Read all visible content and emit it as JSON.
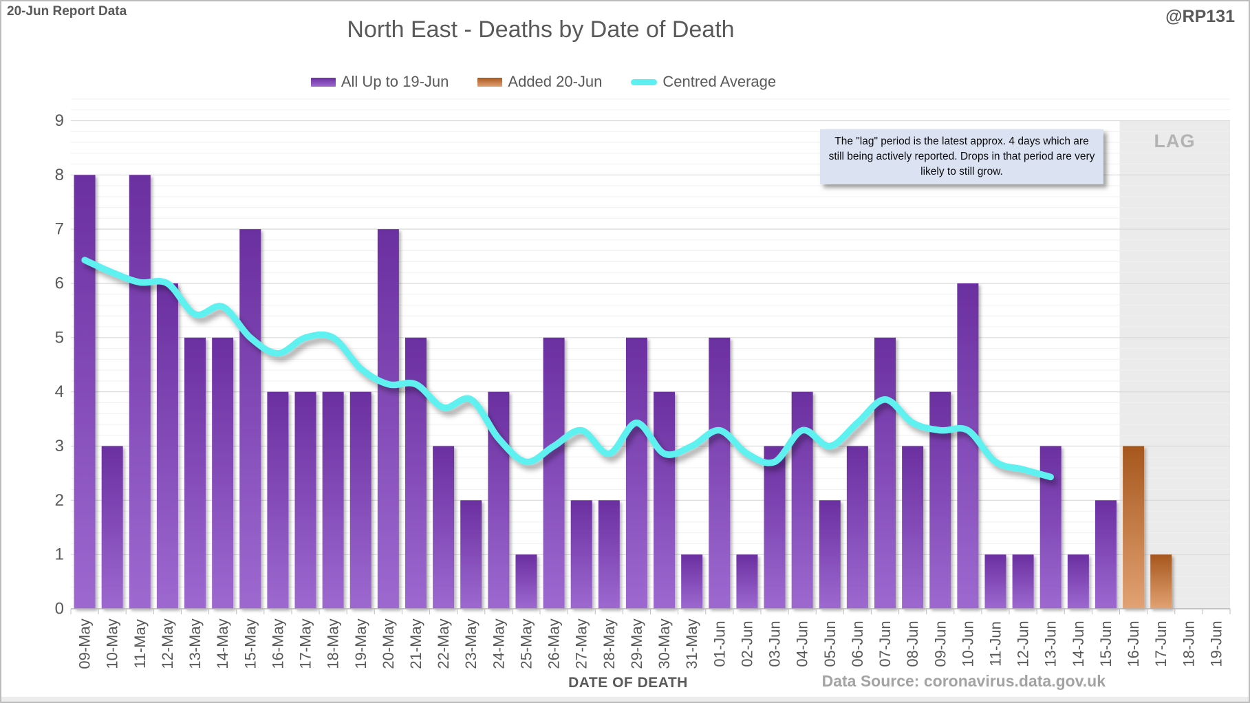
{
  "header": {
    "report_label": "20-Jun Report Data",
    "title": "North East - Deaths by Date of Death",
    "handle": "@RP131"
  },
  "legend": {
    "bars_series_label": "All Up to 19-Jun",
    "added_series_label": "Added 20-Jun",
    "line_series_label": "Centred Average"
  },
  "annotation": {
    "lag_label": "LAG",
    "lag_note": "The \"lag\" period is the latest approx. 4 days which are still being actively reported. Drops in that period are very likely to still grow."
  },
  "footer": {
    "x_axis_title": "DATE OF DEATH",
    "data_source": "Data Source: coronavirus.data.gov.uk"
  },
  "colors": {
    "purple_top": "#6b2fa0",
    "purple_bottom": "#9d69d0",
    "orange_top": "#a6571d",
    "orange_bottom": "#e2a273",
    "cyan_line": "#5ef0f0",
    "grid_major": "#d9d9d9",
    "grid_minor": "#f0f0f0",
    "axis_line": "#b3b3b3",
    "tick": "#bfbfbf",
    "lag_band": "#ebebeb",
    "axis_text": "#595959"
  },
  "chart_data": {
    "type": "bar",
    "title": "North East - Deaths by Date of Death",
    "xlabel": "DATE OF DEATH",
    "ylabel": "",
    "ylim": [
      0,
      9.45
    ],
    "y_ticks": [
      0,
      1,
      2,
      3,
      4,
      5,
      6,
      7,
      8,
      9
    ],
    "y_minor_unit": 0.2,
    "grid": true,
    "legend_position": "top",
    "categories": [
      "09-May",
      "10-May",
      "11-May",
      "12-May",
      "13-May",
      "14-May",
      "15-May",
      "16-May",
      "17-May",
      "18-May",
      "19-May",
      "20-May",
      "21-May",
      "22-May",
      "23-May",
      "24-May",
      "25-May",
      "26-May",
      "27-May",
      "28-May",
      "29-May",
      "30-May",
      "31-May",
      "01-Jun",
      "02-Jun",
      "03-Jun",
      "04-Jun",
      "05-Jun",
      "06-Jun",
      "07-Jun",
      "08-Jun",
      "09-Jun",
      "10-Jun",
      "11-Jun",
      "12-Jun",
      "13-Jun",
      "14-Jun",
      "15-Jun",
      "16-Jun",
      "17-Jun",
      "18-Jun",
      "19-Jun"
    ],
    "series": [
      {
        "name": "All Up to 19-Jun",
        "type": "bar",
        "color": "purple",
        "values": [
          8,
          3,
          8,
          6,
          5,
          5,
          7,
          4,
          4,
          4,
          4,
          7,
          5,
          3,
          2,
          4,
          1,
          5,
          2,
          2,
          5,
          4,
          1,
          5,
          1,
          3,
          4,
          2,
          3,
          5,
          3,
          4,
          6,
          1,
          1,
          3,
          1,
          2,
          0,
          0,
          0,
          0
        ]
      },
      {
        "name": "Added 20-Jun",
        "type": "bar",
        "color": "orange",
        "values": [
          0,
          0,
          0,
          0,
          0,
          0,
          0,
          0,
          0,
          0,
          0,
          0,
          0,
          0,
          0,
          0,
          0,
          0,
          0,
          0,
          0,
          0,
          0,
          0,
          0,
          0,
          0,
          0,
          0,
          0,
          0,
          0,
          0,
          0,
          0,
          0,
          0,
          0,
          3,
          1,
          0,
          0
        ]
      },
      {
        "name": "Centred Average",
        "type": "line",
        "color": "cyan",
        "values": [
          6.43,
          6.2,
          6.02,
          6.0,
          5.43,
          5.57,
          5.0,
          4.71,
          5.0,
          5.0,
          4.43,
          4.14,
          4.14,
          3.71,
          3.86,
          3.14,
          2.71,
          3.0,
          3.29,
          2.86,
          3.43,
          2.86,
          3.0,
          3.29,
          2.86,
          2.71,
          3.29,
          3.0,
          3.43,
          3.86,
          3.43,
          3.29,
          3.29,
          2.71,
          2.57,
          2.43,
          null,
          null,
          null,
          null,
          null,
          null
        ]
      }
    ],
    "lag_region": {
      "label": "LAG",
      "start_category": "16-Jun",
      "end_category": "19-Jun"
    }
  }
}
